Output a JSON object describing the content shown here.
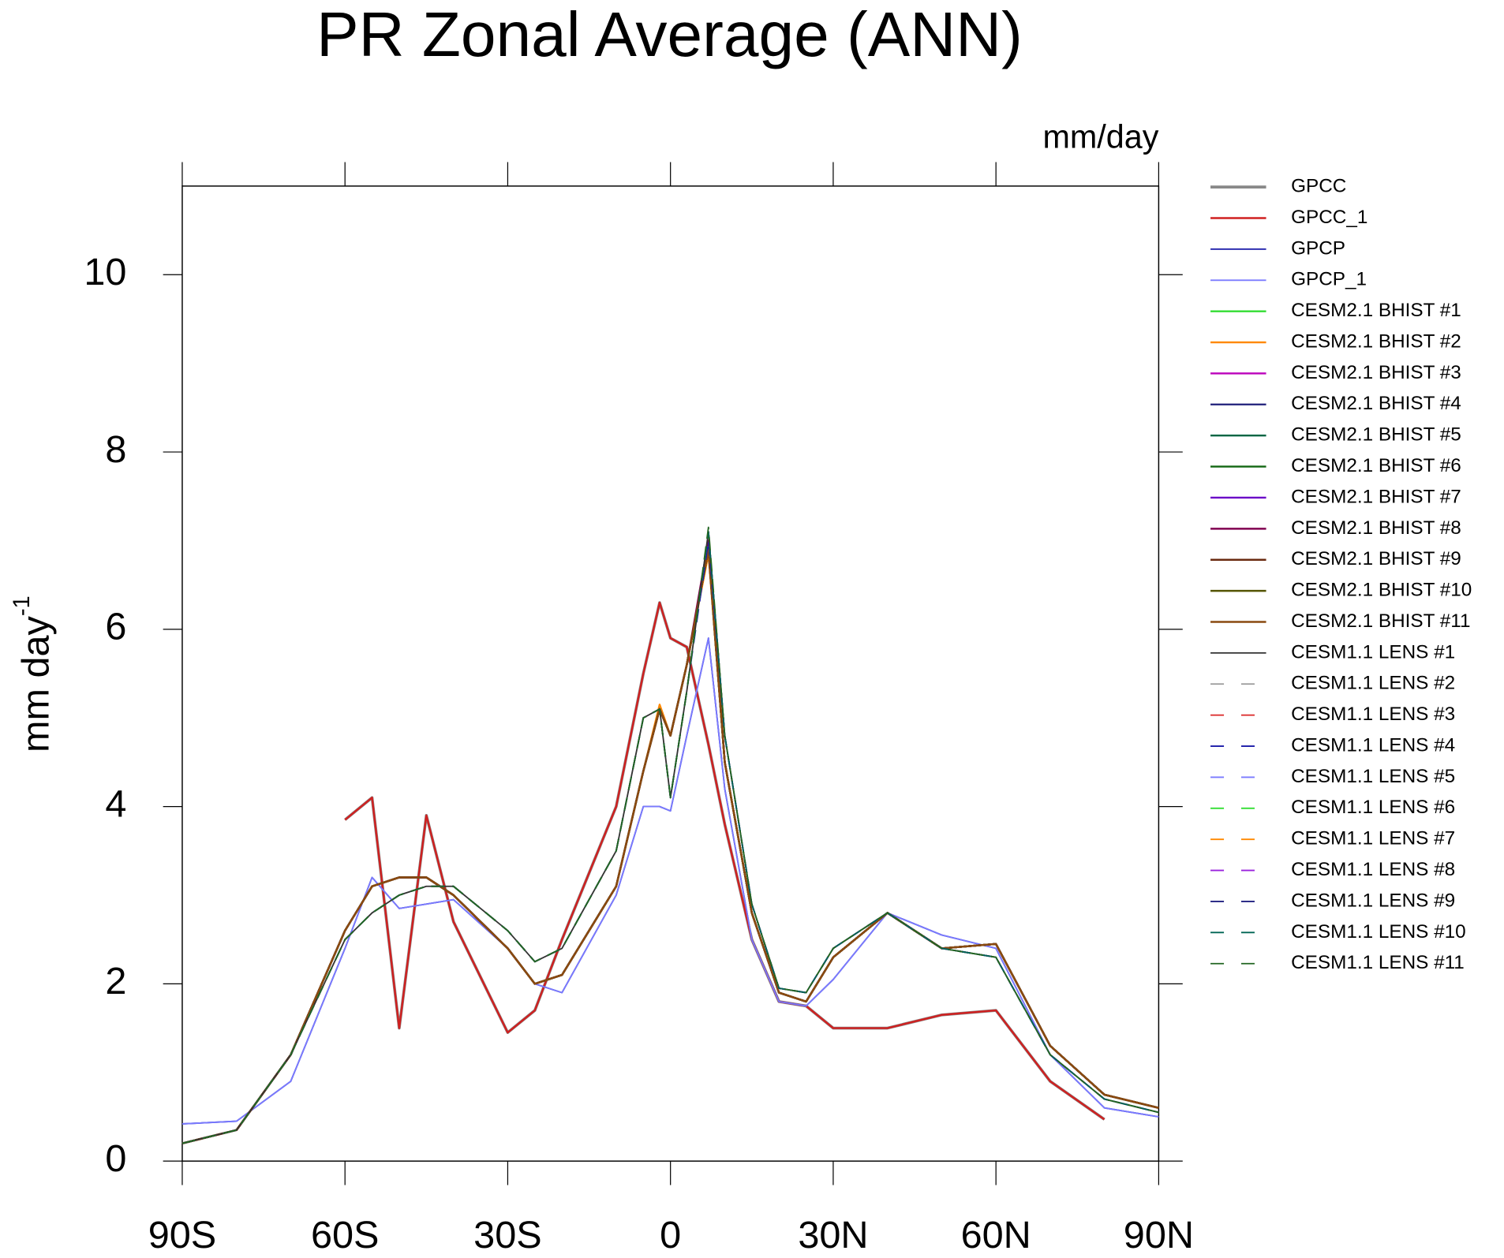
{
  "chart_data": {
    "type": "line",
    "title": "PR Zonal Average (ANN)",
    "units": "mm/day",
    "ylabel": "mm day",
    "ylabel_sup": "-1",
    "x": [
      -90,
      -80,
      -70,
      -60,
      -55,
      -50,
      -45,
      -40,
      -30,
      -25,
      -20,
      -10,
      -5,
      -2,
      0,
      3,
      7,
      10,
      15,
      20,
      25,
      30,
      40,
      50,
      60,
      70,
      80,
      90
    ],
    "xlim": [
      -90,
      90
    ],
    "xticks": [
      {
        "value": -90,
        "label": "90S"
      },
      {
        "value": -60,
        "label": "60S"
      },
      {
        "value": -30,
        "label": "30S"
      },
      0,
      {
        "value": 30,
        "label": "30N"
      },
      {
        "value": 60,
        "label": "60N"
      },
      {
        "value": 90,
        "label": "90N"
      }
    ],
    "ylim": [
      0,
      11
    ],
    "yticks": [
      0,
      2,
      4,
      6,
      8,
      10
    ],
    "series": [
      {
        "name": "GPCC",
        "color": "#888888",
        "dash": false,
        "width": 3,
        "values": [
          null,
          null,
          null,
          3.85,
          4.1,
          1.5,
          3.9,
          2.7,
          1.45,
          1.7,
          2.5,
          4.0,
          5.5,
          6.3,
          5.9,
          5.8,
          4.7,
          3.8,
          2.5,
          1.8,
          1.75,
          1.5,
          1.5,
          1.65,
          1.7,
          0.9,
          0.47,
          null
        ]
      },
      {
        "name": "GPCC_1",
        "color": "#d02020",
        "dash": false,
        "width": 2,
        "values": [
          null,
          null,
          null,
          3.85,
          4.1,
          1.5,
          3.9,
          2.7,
          1.45,
          1.7,
          2.5,
          4.0,
          5.5,
          6.3,
          5.9,
          5.8,
          4.7,
          3.8,
          2.5,
          1.8,
          1.75,
          1.5,
          1.5,
          1.65,
          1.7,
          0.9,
          0.47,
          null
        ]
      },
      {
        "name": "GPCP",
        "color": "#1a1aa8",
        "dash": false,
        "width": 1.5,
        "values": [
          0.42,
          0.45,
          0.9,
          2.4,
          3.2,
          2.85,
          2.9,
          2.95,
          2.4,
          2.0,
          1.9,
          3.0,
          4.0,
          4.0,
          3.95,
          4.8,
          5.9,
          4.2,
          2.5,
          1.8,
          1.75,
          2.05,
          2.8,
          2.55,
          2.4,
          1.2,
          0.6,
          0.5
        ]
      },
      {
        "name": "GPCP_1",
        "color": "#7a7aff",
        "dash": false,
        "width": 1.5,
        "values": [
          0.42,
          0.45,
          0.9,
          2.4,
          3.2,
          2.85,
          2.9,
          2.95,
          2.4,
          2.0,
          1.9,
          3.0,
          4.0,
          4.0,
          3.95,
          4.8,
          5.9,
          4.2,
          2.5,
          1.8,
          1.75,
          2.05,
          2.8,
          2.55,
          2.4,
          1.2,
          0.6,
          0.5
        ]
      },
      {
        "name": "CESM2.1 BHIST #1",
        "color": "#33dd33",
        "dash": false,
        "width": 2,
        "values": [
          0.2,
          0.35,
          1.2,
          2.6,
          3.1,
          3.2,
          3.2,
          3.0,
          2.4,
          2.0,
          2.1,
          3.1,
          4.4,
          5.1,
          4.8,
          5.6,
          6.9,
          4.5,
          2.8,
          1.9,
          1.8,
          2.3,
          2.8,
          2.4,
          2.45,
          1.3,
          0.75,
          0.6
        ]
      },
      {
        "name": "CESM2.1 BHIST #2",
        "color": "#ff8800",
        "dash": false,
        "width": 2,
        "values": [
          0.2,
          0.35,
          1.2,
          2.6,
          3.1,
          3.2,
          3.2,
          3.0,
          2.4,
          2.0,
          2.1,
          3.1,
          4.4,
          5.15,
          4.8,
          5.6,
          6.85,
          4.5,
          2.8,
          1.9,
          1.8,
          2.3,
          2.8,
          2.4,
          2.45,
          1.3,
          0.75,
          0.6
        ]
      },
      {
        "name": "CESM2.1 BHIST #3",
        "color": "#bb00bb",
        "dash": false,
        "width": 2,
        "values": [
          0.2,
          0.35,
          1.2,
          2.6,
          3.1,
          3.2,
          3.2,
          3.0,
          2.4,
          2.0,
          2.1,
          3.1,
          4.4,
          5.1,
          4.8,
          5.6,
          6.95,
          4.5,
          2.8,
          1.9,
          1.8,
          2.3,
          2.8,
          2.4,
          2.45,
          1.3,
          0.75,
          0.6
        ]
      },
      {
        "name": "CESM2.1 BHIST #4",
        "color": "#2a2a80",
        "dash": false,
        "width": 2,
        "values": [
          0.2,
          0.35,
          1.2,
          2.6,
          3.1,
          3.2,
          3.2,
          3.0,
          2.4,
          2.0,
          2.1,
          3.1,
          4.4,
          5.1,
          4.8,
          5.6,
          6.9,
          4.5,
          2.8,
          1.9,
          1.8,
          2.3,
          2.8,
          2.4,
          2.45,
          1.3,
          0.75,
          0.6
        ]
      },
      {
        "name": "CESM2.1 BHIST #5",
        "color": "#006644",
        "dash": false,
        "width": 2,
        "values": [
          0.2,
          0.35,
          1.2,
          2.6,
          3.1,
          3.2,
          3.2,
          3.0,
          2.4,
          2.0,
          2.1,
          3.1,
          4.4,
          5.1,
          4.8,
          5.6,
          6.9,
          4.5,
          2.8,
          1.9,
          1.8,
          2.3,
          2.8,
          2.4,
          2.45,
          1.3,
          0.75,
          0.6
        ]
      },
      {
        "name": "CESM2.1 BHIST #6",
        "color": "#116611",
        "dash": false,
        "width": 2,
        "values": [
          0.2,
          0.35,
          1.2,
          2.6,
          3.1,
          3.2,
          3.2,
          3.0,
          2.4,
          2.0,
          2.1,
          3.1,
          4.4,
          5.1,
          4.8,
          5.6,
          6.9,
          4.5,
          2.8,
          1.9,
          1.8,
          2.3,
          2.8,
          2.4,
          2.45,
          1.3,
          0.75,
          0.6
        ]
      },
      {
        "name": "CESM2.1 BHIST #7",
        "color": "#6a00c8",
        "dash": false,
        "width": 2,
        "values": [
          0.2,
          0.35,
          1.2,
          2.6,
          3.1,
          3.2,
          3.2,
          3.0,
          2.4,
          2.0,
          2.1,
          3.1,
          4.4,
          5.1,
          4.8,
          5.6,
          6.9,
          4.5,
          2.8,
          1.9,
          1.8,
          2.3,
          2.8,
          2.4,
          2.45,
          1.3,
          0.75,
          0.6
        ]
      },
      {
        "name": "CESM2.1 BHIST #8",
        "color": "#800050",
        "dash": false,
        "width": 2,
        "values": [
          0.2,
          0.35,
          1.2,
          2.6,
          3.1,
          3.2,
          3.2,
          3.0,
          2.4,
          2.0,
          2.1,
          3.1,
          4.4,
          5.1,
          4.8,
          5.6,
          7.0,
          4.5,
          2.8,
          1.9,
          1.8,
          2.3,
          2.8,
          2.4,
          2.45,
          1.3,
          0.75,
          0.6
        ]
      },
      {
        "name": "CESM2.1 BHIST #9",
        "color": "#6a2a10",
        "dash": false,
        "width": 2,
        "values": [
          0.2,
          0.35,
          1.2,
          2.6,
          3.1,
          3.2,
          3.2,
          3.0,
          2.4,
          2.0,
          2.1,
          3.1,
          4.4,
          5.1,
          4.8,
          5.6,
          6.9,
          4.5,
          2.8,
          1.9,
          1.8,
          2.3,
          2.8,
          2.4,
          2.45,
          1.3,
          0.75,
          0.6
        ]
      },
      {
        "name": "CESM2.1 BHIST #10",
        "color": "#555500",
        "dash": false,
        "width": 2,
        "values": [
          0.2,
          0.35,
          1.2,
          2.6,
          3.1,
          3.2,
          3.2,
          3.0,
          2.4,
          2.0,
          2.1,
          3.1,
          4.4,
          5.1,
          4.8,
          5.6,
          6.9,
          4.5,
          2.8,
          1.9,
          1.8,
          2.3,
          2.8,
          2.4,
          2.45,
          1.3,
          0.75,
          0.6
        ]
      },
      {
        "name": "CESM2.1 BHIST #11",
        "color": "#8a4a10",
        "dash": false,
        "width": 2,
        "values": [
          0.2,
          0.35,
          1.2,
          2.6,
          3.1,
          3.2,
          3.2,
          3.0,
          2.4,
          2.0,
          2.1,
          3.1,
          4.4,
          5.1,
          4.8,
          5.6,
          6.9,
          4.5,
          2.8,
          1.9,
          1.8,
          2.3,
          2.8,
          2.4,
          2.45,
          1.3,
          0.75,
          0.6
        ]
      },
      {
        "name": "CESM1.1 LENS #1",
        "color": "#333333",
        "dash": false,
        "width": 1.5,
        "values": [
          0.2,
          0.35,
          1.2,
          2.5,
          2.8,
          3.0,
          3.1,
          3.1,
          2.6,
          2.25,
          2.4,
          3.5,
          5.0,
          5.1,
          4.1,
          5.3,
          7.1,
          4.8,
          2.9,
          1.95,
          1.9,
          2.4,
          2.8,
          2.4,
          2.3,
          1.2,
          0.7,
          0.55
        ]
      },
      {
        "name": "CESM1.1 LENS #2",
        "color": "#999999",
        "dash": true,
        "width": 1.5,
        "values": [
          0.2,
          0.35,
          1.2,
          2.5,
          2.8,
          3.0,
          3.1,
          3.1,
          2.6,
          2.25,
          2.4,
          3.5,
          5.0,
          5.1,
          4.1,
          5.3,
          7.1,
          4.8,
          2.9,
          1.95,
          1.9,
          2.4,
          2.8,
          2.4,
          2.3,
          1.2,
          0.7,
          0.55
        ]
      },
      {
        "name": "CESM1.1 LENS #3",
        "color": "#dd3333",
        "dash": true,
        "width": 1.5,
        "values": [
          0.2,
          0.35,
          1.2,
          2.5,
          2.8,
          3.0,
          3.1,
          3.1,
          2.6,
          2.25,
          2.4,
          3.5,
          5.0,
          5.1,
          4.1,
          5.3,
          7.1,
          4.8,
          2.9,
          1.95,
          1.9,
          2.4,
          2.8,
          2.4,
          2.3,
          1.2,
          0.7,
          0.55
        ]
      },
      {
        "name": "CESM1.1 LENS #4",
        "color": "#1a1aa8",
        "dash": true,
        "width": 1.5,
        "values": [
          0.2,
          0.35,
          1.2,
          2.5,
          2.8,
          3.0,
          3.1,
          3.1,
          2.6,
          2.25,
          2.4,
          3.5,
          5.0,
          5.1,
          4.1,
          5.3,
          7.0,
          4.8,
          2.9,
          1.95,
          1.9,
          2.4,
          2.8,
          2.4,
          2.3,
          1.2,
          0.7,
          0.55
        ]
      },
      {
        "name": "CESM1.1 LENS #5",
        "color": "#7a7aff",
        "dash": true,
        "width": 1.5,
        "values": [
          0.2,
          0.35,
          1.2,
          2.5,
          2.8,
          3.0,
          3.1,
          3.1,
          2.6,
          2.25,
          2.4,
          3.5,
          5.0,
          5.1,
          4.1,
          5.3,
          7.1,
          4.8,
          2.9,
          1.95,
          1.9,
          2.4,
          2.8,
          2.4,
          2.3,
          1.2,
          0.7,
          0.55
        ]
      },
      {
        "name": "CESM1.1 LENS #6",
        "color": "#33dd33",
        "dash": true,
        "width": 1.5,
        "values": [
          0.2,
          0.35,
          1.2,
          2.5,
          2.8,
          3.0,
          3.1,
          3.1,
          2.6,
          2.25,
          2.4,
          3.5,
          5.0,
          5.1,
          4.1,
          5.3,
          7.1,
          4.8,
          2.9,
          1.95,
          1.9,
          2.4,
          2.8,
          2.4,
          2.3,
          1.2,
          0.7,
          0.55
        ]
      },
      {
        "name": "CESM1.1 LENS #7",
        "color": "#ff8800",
        "dash": true,
        "width": 1.5,
        "values": [
          0.2,
          0.35,
          1.2,
          2.5,
          2.8,
          3.0,
          3.1,
          3.1,
          2.6,
          2.25,
          2.4,
          3.5,
          5.0,
          5.1,
          4.1,
          5.3,
          7.1,
          4.8,
          2.9,
          1.95,
          1.9,
          2.4,
          2.8,
          2.4,
          2.3,
          1.2,
          0.7,
          0.55
        ]
      },
      {
        "name": "CESM1.1 LENS #8",
        "color": "#9a22dd",
        "dash": true,
        "width": 1.5,
        "values": [
          0.2,
          0.35,
          1.2,
          2.5,
          2.8,
          3.0,
          3.1,
          3.1,
          2.6,
          2.25,
          2.4,
          3.5,
          5.0,
          5.1,
          4.1,
          5.3,
          7.1,
          4.8,
          2.9,
          1.95,
          1.9,
          2.4,
          2.8,
          2.4,
          2.3,
          1.2,
          0.7,
          0.55
        ]
      },
      {
        "name": "CESM1.1 LENS #9",
        "color": "#202080",
        "dash": true,
        "width": 1.5,
        "values": [
          0.2,
          0.35,
          1.2,
          2.5,
          2.8,
          3.0,
          3.1,
          3.1,
          2.6,
          2.25,
          2.4,
          3.5,
          5.0,
          5.1,
          4.1,
          5.3,
          7.1,
          4.8,
          2.9,
          1.95,
          1.9,
          2.4,
          2.8,
          2.4,
          2.3,
          1.2,
          0.7,
          0.55
        ]
      },
      {
        "name": "CESM1.1 LENS #10",
        "color": "#006655",
        "dash": true,
        "width": 1.5,
        "values": [
          0.2,
          0.35,
          1.2,
          2.5,
          2.8,
          3.0,
          3.1,
          3.1,
          2.6,
          2.25,
          2.4,
          3.5,
          5.0,
          5.1,
          4.1,
          5.3,
          7.1,
          4.8,
          2.9,
          1.95,
          1.9,
          2.4,
          2.8,
          2.4,
          2.3,
          1.2,
          0.7,
          0.55
        ]
      },
      {
        "name": "CESM1.1 LENS #11",
        "color": "#226622",
        "dash": true,
        "width": 1.5,
        "values": [
          0.2,
          0.35,
          1.2,
          2.5,
          2.8,
          3.0,
          3.1,
          3.1,
          2.6,
          2.25,
          2.4,
          3.5,
          5.0,
          5.1,
          4.1,
          5.3,
          7.15,
          4.8,
          2.9,
          1.95,
          1.9,
          2.4,
          2.8,
          2.4,
          2.3,
          1.2,
          0.7,
          0.55
        ]
      }
    ]
  }
}
